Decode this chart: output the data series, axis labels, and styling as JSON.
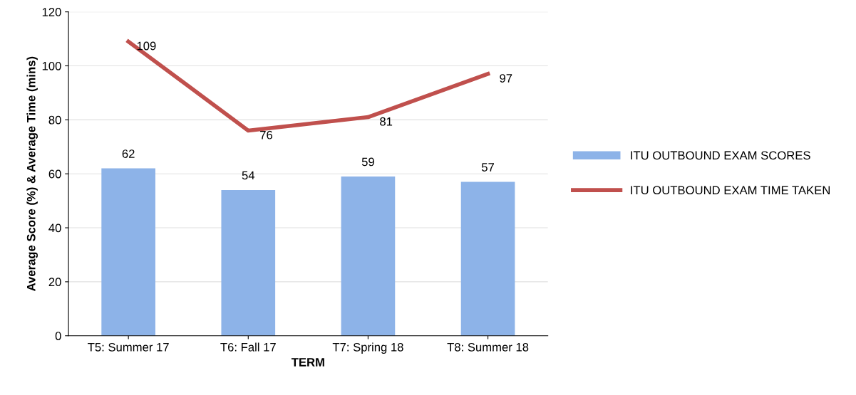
{
  "chart_data": {
    "type": "bar",
    "xlabel": "TERM",
    "ylabel": "Average Score (%) & Average Time (mins)",
    "categories": [
      "T5: Summer 17",
      "T6: Fall 17",
      "T7: Spring 18",
      "T8: Summer 18"
    ],
    "series": [
      {
        "name": "ITU OUTBOUND EXAM SCORES",
        "color": "#8db3e8",
        "values": [
          62,
          54,
          59,
          57
        ]
      },
      {
        "name": "ITU OUTBOUND EXAM TIME TAKEN",
        "type": "line",
        "color": "#c0504d",
        "values": [
          109,
          76,
          81,
          97
        ]
      }
    ],
    "ylim": [
      0,
      120
    ],
    "yticks": [
      0,
      20,
      40,
      60,
      80,
      100,
      120
    ],
    "grid": "y",
    "legend": "right",
    "data_labels": true,
    "marker": "none",
    "line_style": "solid"
  }
}
